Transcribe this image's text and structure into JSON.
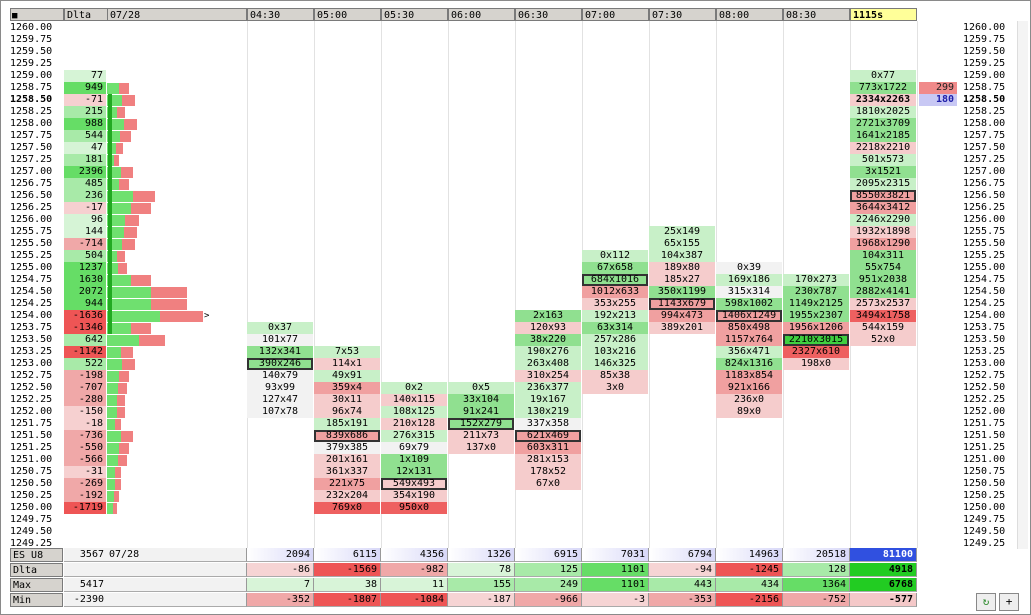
{
  "header": {
    "corner_icon": "grid-menu-icon",
    "delta_label": "Dlta",
    "date_label": "07/28",
    "time_columns": [
      "04:30",
      "05:00",
      "05:30",
      "06:00",
      "06:30",
      "07:00",
      "07:30",
      "08:00",
      "08:30",
      "1115s"
    ]
  },
  "prices": [
    "1260.00",
    "1259.75",
    "1259.50",
    "1259.25",
    "1259.00",
    "1258.75",
    "1258.50",
    "1258.25",
    "1258.00",
    "1257.75",
    "1257.50",
    "1257.25",
    "1257.00",
    "1256.75",
    "1256.50",
    "1256.25",
    "1256.00",
    "1255.75",
    "1255.50",
    "1255.25",
    "1255.00",
    "1254.75",
    "1254.50",
    "1254.25",
    "1254.00",
    "1253.75",
    "1253.50",
    "1253.25",
    "1253.00",
    "1252.75",
    "1252.50",
    "1252.25",
    "1252.00",
    "1251.75",
    "1251.50",
    "1251.25",
    "1251.00",
    "1250.75",
    "1250.50",
    "1250.25",
    "1250.00",
    "1249.75",
    "1249.50",
    "1249.25"
  ],
  "current_price": "1258.50",
  "delta_by_price": [
    {
      "p": "1259.00",
      "v": "77"
    },
    {
      "p": "1258.75",
      "v": "949"
    },
    {
      "p": "1258.50",
      "v": "-71"
    },
    {
      "p": "1258.25",
      "v": "215"
    },
    {
      "p": "1258.00",
      "v": "988"
    },
    {
      "p": "1257.75",
      "v": "544"
    },
    {
      "p": "1257.50",
      "v": "47"
    },
    {
      "p": "1257.25",
      "v": "181"
    },
    {
      "p": "1257.00",
      "v": "2396"
    },
    {
      "p": "1256.75",
      "v": "485"
    },
    {
      "p": "1256.50",
      "v": "236"
    },
    {
      "p": "1256.25",
      "v": "-17"
    },
    {
      "p": "1256.00",
      "v": "96"
    },
    {
      "p": "1255.75",
      "v": "144"
    },
    {
      "p": "1255.50",
      "v": "-714"
    },
    {
      "p": "1255.25",
      "v": "504"
    },
    {
      "p": "1255.00",
      "v": "1237"
    },
    {
      "p": "1254.75",
      "v": "1630"
    },
    {
      "p": "1254.50",
      "v": "2072"
    },
    {
      "p": "1254.25",
      "v": "944"
    },
    {
      "p": "1254.00",
      "v": "-1636"
    },
    {
      "p": "1253.75",
      "v": "-1346"
    },
    {
      "p": "1253.50",
      "v": "642"
    },
    {
      "p": "1253.25",
      "v": "-1142"
    },
    {
      "p": "1253.00",
      "v": "522"
    },
    {
      "p": "1252.75",
      "v": "-198"
    },
    {
      "p": "1252.50",
      "v": "-707"
    },
    {
      "p": "1252.25",
      "v": "-280"
    },
    {
      "p": "1252.00",
      "v": "-150"
    },
    {
      "p": "1251.75",
      "v": "-18"
    },
    {
      "p": "1251.50",
      "v": "-736"
    },
    {
      "p": "1251.25",
      "v": "-550"
    },
    {
      "p": "1251.00",
      "v": "-566"
    },
    {
      "p": "1250.75",
      "v": "-31"
    },
    {
      "p": "1250.50",
      "v": "-269"
    },
    {
      "p": "1250.25",
      "v": "-192"
    },
    {
      "p": "1250.00",
      "v": "-1719"
    }
  ],
  "volume_profile": [
    {
      "p": "1258.75",
      "v": 22
    },
    {
      "p": "1258.50",
      "v": 28
    },
    {
      "p": "1258.25",
      "v": 18
    },
    {
      "p": "1258.00",
      "v": 30
    },
    {
      "p": "1257.75",
      "v": 24
    },
    {
      "p": "1257.50",
      "v": 16
    },
    {
      "p": "1257.25",
      "v": 12
    },
    {
      "p": "1257.00",
      "v": 26
    },
    {
      "p": "1256.75",
      "v": 22
    },
    {
      "p": "1256.50",
      "v": 48
    },
    {
      "p": "1256.25",
      "v": 44
    },
    {
      "p": "1256.00",
      "v": 32
    },
    {
      "p": "1255.75",
      "v": 30
    },
    {
      "p": "1255.50",
      "v": 28
    },
    {
      "p": "1255.25",
      "v": 18
    },
    {
      "p": "1255.00",
      "v": 20
    },
    {
      "p": "1254.75",
      "v": 44
    },
    {
      "p": "1254.50",
      "v": 80
    },
    {
      "p": "1254.25",
      "v": 80
    },
    {
      "p": "1254.00",
      "v": 96
    },
    {
      "p": "1253.75",
      "v": 44
    },
    {
      "p": "1253.50",
      "v": 58
    },
    {
      "p": "1253.25",
      "v": 26
    },
    {
      "p": "1253.00",
      "v": 28
    },
    {
      "p": "1252.75",
      "v": 22
    },
    {
      "p": "1252.50",
      "v": 20
    },
    {
      "p": "1252.25",
      "v": 18
    },
    {
      "p": "1252.00",
      "v": 18
    },
    {
      "p": "1251.75",
      "v": 14
    },
    {
      "p": "1251.50",
      "v": 26
    },
    {
      "p": "1251.25",
      "v": 22
    },
    {
      "p": "1251.00",
      "v": 20
    },
    {
      "p": "1250.75",
      "v": 14
    },
    {
      "p": "1250.50",
      "v": 14
    },
    {
      "p": "1250.25",
      "v": 12
    },
    {
      "p": "1250.00",
      "v": 10
    }
  ],
  "value_area": {
    "top": "1258.50",
    "bottom": "1253.75"
  },
  "poc_marker": {
    "p": "1254.00",
    "label": ">"
  },
  "cells": [
    {
      "c": 0,
      "p": "1253.75",
      "t": "0x37",
      "s": "lg"
    },
    {
      "c": 0,
      "p": "1253.50",
      "t": "101x77",
      "s": "w"
    },
    {
      "c": 0,
      "p": "1253.25",
      "t": "132x341",
      "s": "g"
    },
    {
      "c": 0,
      "p": "1253.00",
      "t": "390x246",
      "s": "g",
      "box": true
    },
    {
      "c": 0,
      "p": "1252.75",
      "t": "140x79",
      "s": "w"
    },
    {
      "c": 0,
      "p": "1252.50",
      "t": "93x99",
      "s": "w"
    },
    {
      "c": 0,
      "p": "1252.25",
      "t": "127x47",
      "s": "w"
    },
    {
      "c": 0,
      "p": "1252.00",
      "t": "107x78",
      "s": "w"
    },
    {
      "c": 1,
      "p": "1253.25",
      "t": "7x53",
      "s": "lg"
    },
    {
      "c": 1,
      "p": "1253.00",
      "t": "114x1",
      "s": "lr"
    },
    {
      "c": 1,
      "p": "1252.75",
      "t": "49x91",
      "s": "lg"
    },
    {
      "c": 1,
      "p": "1252.50",
      "t": "359x4",
      "s": "r"
    },
    {
      "c": 1,
      "p": "1252.25",
      "t": "30x11",
      "s": "lr"
    },
    {
      "c": 1,
      "p": "1252.00",
      "t": "96x74",
      "s": "lr"
    },
    {
      "c": 1,
      "p": "1251.75",
      "t": "185x191",
      "s": "lg"
    },
    {
      "c": 1,
      "p": "1251.50",
      "t": "839x686",
      "s": "r",
      "box": true
    },
    {
      "c": 1,
      "p": "1251.25",
      "t": "379x385",
      "s": "w"
    },
    {
      "c": 1,
      "p": "1251.00",
      "t": "201x161",
      "s": "lr"
    },
    {
      "c": 1,
      "p": "1250.75",
      "t": "361x337",
      "s": "lr"
    },
    {
      "c": 1,
      "p": "1250.50",
      "t": "221x75",
      "s": "r"
    },
    {
      "c": 1,
      "p": "1250.25",
      "t": "232x204",
      "s": "lr"
    },
    {
      "c": 1,
      "p": "1250.00",
      "t": "769x0",
      "s": "rr"
    },
    {
      "c": 2,
      "p": "1252.50",
      "t": "0x2",
      "s": "lg"
    },
    {
      "c": 2,
      "p": "1252.25",
      "t": "140x115",
      "s": "lr"
    },
    {
      "c": 2,
      "p": "1252.00",
      "t": "108x125",
      "s": "lg"
    },
    {
      "c": 2,
      "p": "1251.75",
      "t": "210x128",
      "s": "lr"
    },
    {
      "c": 2,
      "p": "1251.50",
      "t": "276x315",
      "s": "lg"
    },
    {
      "c": 2,
      "p": "1251.25",
      "t": "69x79",
      "s": "w"
    },
    {
      "c": 2,
      "p": "1251.00",
      "t": "1x109",
      "s": "g"
    },
    {
      "c": 2,
      "p": "1250.75",
      "t": "12x131",
      "s": "g"
    },
    {
      "c": 2,
      "p": "1250.50",
      "t": "549x493",
      "s": "lr",
      "box": true
    },
    {
      "c": 2,
      "p": "1250.25",
      "t": "354x190",
      "s": "lr"
    },
    {
      "c": 2,
      "p": "1250.00",
      "t": "950x0",
      "s": "rr"
    },
    {
      "c": 3,
      "p": "1252.50",
      "t": "0x5",
      "s": "lg"
    },
    {
      "c": 3,
      "p": "1252.25",
      "t": "33x104",
      "s": "g"
    },
    {
      "c": 3,
      "p": "1252.00",
      "t": "91x241",
      "s": "g"
    },
    {
      "c": 3,
      "p": "1251.75",
      "t": "152x279",
      "s": "g",
      "box": true
    },
    {
      "c": 3,
      "p": "1251.50",
      "t": "211x73",
      "s": "lr"
    },
    {
      "c": 3,
      "p": "1251.25",
      "t": "137x0",
      "s": "lr"
    },
    {
      "c": 4,
      "p": "1254.00",
      "t": "2x163",
      "s": "g"
    },
    {
      "c": 4,
      "p": "1253.75",
      "t": "120x93",
      "s": "lr"
    },
    {
      "c": 4,
      "p": "1253.50",
      "t": "38x220",
      "s": "g"
    },
    {
      "c": 4,
      "p": "1253.25",
      "t": "190x276",
      "s": "lg"
    },
    {
      "c": 4,
      "p": "1253.00",
      "t": "263x408",
      "s": "lg"
    },
    {
      "c": 4,
      "p": "1252.75",
      "t": "310x254",
      "s": "lr"
    },
    {
      "c": 4,
      "p": "1252.50",
      "t": "236x377",
      "s": "lg"
    },
    {
      "c": 4,
      "p": "1252.25",
      "t": "19x167",
      "s": "lg"
    },
    {
      "c": 4,
      "p": "1252.00",
      "t": "130x219",
      "s": "lg"
    },
    {
      "c": 4,
      "p": "1251.75",
      "t": "337x358",
      "s": "w"
    },
    {
      "c": 4,
      "p": "1251.50",
      "t": "621x469",
      "s": "r",
      "box": true
    },
    {
      "c": 4,
      "p": "1251.25",
      "t": "603x311",
      "s": "r"
    },
    {
      "c": 4,
      "p": "1251.00",
      "t": "281x153",
      "s": "lr"
    },
    {
      "c": 4,
      "p": "1250.75",
      "t": "178x52",
      "s": "lr"
    },
    {
      "c": 4,
      "p": "1250.50",
      "t": "67x0",
      "s": "lr"
    },
    {
      "c": 5,
      "p": "1255.25",
      "t": "0x112",
      "s": "lg"
    },
    {
      "c": 5,
      "p": "1255.00",
      "t": "67x658",
      "s": "g"
    },
    {
      "c": 5,
      "p": "1254.75",
      "t": "684x1016",
      "s": "g",
      "box": true
    },
    {
      "c": 5,
      "p": "1254.50",
      "t": "1012x633",
      "s": "r"
    },
    {
      "c": 5,
      "p": "1254.25",
      "t": "353x255",
      "s": "lr"
    },
    {
      "c": 5,
      "p": "1254.00",
      "t": "192x213",
      "s": "lg"
    },
    {
      "c": 5,
      "p": "1253.75",
      "t": "63x314",
      "s": "g"
    },
    {
      "c": 5,
      "p": "1253.50",
      "t": "257x286",
      "s": "lg"
    },
    {
      "c": 5,
      "p": "1253.25",
      "t": "103x216",
      "s": "lg"
    },
    {
      "c": 5,
      "p": "1253.00",
      "t": "146x325",
      "s": "lg"
    },
    {
      "c": 5,
      "p": "1252.75",
      "t": "85x38",
      "s": "lr"
    },
    {
      "c": 5,
      "p": "1252.50",
      "t": "3x0",
      "s": "lr"
    },
    {
      "c": 6,
      "p": "1255.75",
      "t": "25x149",
      "s": "lg"
    },
    {
      "c": 6,
      "p": "1255.50",
      "t": "65x155",
      "s": "lg"
    },
    {
      "c": 6,
      "p": "1255.25",
      "t": "104x387",
      "s": "lg"
    },
    {
      "c": 6,
      "p": "1255.00",
      "t": "189x80",
      "s": "lr"
    },
    {
      "c": 6,
      "p": "1254.75",
      "t": "185x27",
      "s": "lr"
    },
    {
      "c": 6,
      "p": "1254.50",
      "t": "350x1199",
      "s": "g"
    },
    {
      "c": 6,
      "p": "1254.25",
      "t": "1143x679",
      "s": "r",
      "box": true
    },
    {
      "c": 6,
      "p": "1254.00",
      "t": "994x473",
      "s": "r"
    },
    {
      "c": 6,
      "p": "1253.75",
      "t": "389x201",
      "s": "lr"
    },
    {
      "c": 7,
      "p": "1255.00",
      "t": "0x39",
      "s": "w"
    },
    {
      "c": 7,
      "p": "1254.75",
      "t": "169x186",
      "s": "lg"
    },
    {
      "c": 7,
      "p": "1254.50",
      "t": "315x314",
      "s": "w"
    },
    {
      "c": 7,
      "p": "1254.25",
      "t": "598x1002",
      "s": "g"
    },
    {
      "c": 7,
      "p": "1254.00",
      "t": "1406x1249",
      "s": "r",
      "box": true
    },
    {
      "c": 7,
      "p": "1253.75",
      "t": "850x498",
      "s": "r"
    },
    {
      "c": 7,
      "p": "1253.50",
      "t": "1157x764",
      "s": "r"
    },
    {
      "c": 7,
      "p": "1253.25",
      "t": "356x471",
      "s": "lg"
    },
    {
      "c": 7,
      "p": "1253.00",
      "t": "824x1316",
      "s": "g"
    },
    {
      "c": 7,
      "p": "1252.75",
      "t": "1183x854",
      "s": "r"
    },
    {
      "c": 7,
      "p": "1252.50",
      "t": "921x166",
      "s": "r"
    },
    {
      "c": 7,
      "p": "1252.25",
      "t": "236x0",
      "s": "lr"
    },
    {
      "c": 7,
      "p": "1252.00",
      "t": "89x0",
      "s": "lr"
    },
    {
      "c": 8,
      "p": "1254.75",
      "t": "170x273",
      "s": "lg"
    },
    {
      "c": 8,
      "p": "1254.50",
      "t": "230x787",
      "s": "g"
    },
    {
      "c": 8,
      "p": "1254.25",
      "t": "1149x2125",
      "s": "g"
    },
    {
      "c": 8,
      "p": "1254.00",
      "t": "1955x2307",
      "s": "g"
    },
    {
      "c": 8,
      "p": "1253.75",
      "t": "1956x1206",
      "s": "r"
    },
    {
      "c": 8,
      "p": "1253.50",
      "t": "2210x3015",
      "s": "gg",
      "box": true
    },
    {
      "c": 8,
      "p": "1253.25",
      "t": "2327x610",
      "s": "rr"
    },
    {
      "c": 8,
      "p": "1253.00",
      "t": "198x0",
      "s": "lr"
    },
    {
      "c": 9,
      "p": "1259.00",
      "t": "0x77",
      "s": "lg"
    },
    {
      "c": 9,
      "p": "1258.75",
      "t": "773x1722",
      "s": "g"
    },
    {
      "c": 9,
      "p": "1258.50",
      "t": "2334x2263",
      "s": "lr",
      "bold": true
    },
    {
      "c": 9,
      "p": "1258.25",
      "t": "1810x2025",
      "s": "lg"
    },
    {
      "c": 9,
      "p": "1258.00",
      "t": "2721x3709",
      "s": "g"
    },
    {
      "c": 9,
      "p": "1257.75",
      "t": "1641x2185",
      "s": "g"
    },
    {
      "c": 9,
      "p": "1257.50",
      "t": "2218x2210",
      "s": "lr"
    },
    {
      "c": 9,
      "p": "1257.25",
      "t": "501x573",
      "s": "lg"
    },
    {
      "c": 9,
      "p": "1257.00",
      "t": "3x1521",
      "s": "g"
    },
    {
      "c": 9,
      "p": "1256.75",
      "t": "2095x2315",
      "s": "lg"
    },
    {
      "c": 9,
      "p": "1256.50",
      "t": "8550x3821",
      "s": "r",
      "box": true
    },
    {
      "c": 9,
      "p": "1256.25",
      "t": "3644x3412",
      "s": "r"
    },
    {
      "c": 9,
      "p": "1256.00",
      "t": "2246x2290",
      "s": "lg"
    },
    {
      "c": 9,
      "p": "1255.75",
      "t": "1932x1898",
      "s": "lr"
    },
    {
      "c": 9,
      "p": "1255.50",
      "t": "1968x1290",
      "s": "r"
    },
    {
      "c": 9,
      "p": "1255.25",
      "t": "104x311",
      "s": "g"
    },
    {
      "c": 9,
      "p": "1255.00",
      "t": "55x754",
      "s": "g"
    },
    {
      "c": 9,
      "p": "1254.75",
      "t": "951x2038",
      "s": "g"
    },
    {
      "c": 9,
      "p": "1254.50",
      "t": "2882x4141",
      "s": "g"
    },
    {
      "c": 9,
      "p": "1254.25",
      "t": "2573x2537",
      "s": "lr"
    },
    {
      "c": 9,
      "p": "1254.00",
      "t": "3494x1758",
      "s": "rr"
    },
    {
      "c": 9,
      "p": "1253.75",
      "t": "544x159",
      "s": "lr"
    },
    {
      "c": 9,
      "p": "1253.50",
      "t": "52x0",
      "s": "lr"
    }
  ],
  "live_orders": [
    {
      "p": "1258.75",
      "v": "299",
      "s": "r"
    },
    {
      "p": "1258.50",
      "v": "180",
      "s": "b"
    }
  ],
  "summary": [
    {
      "label": "ES U8",
      "first": "3567",
      "second": "07/28",
      "vals": [
        "2094",
        "6115",
        "4356",
        "1326",
        "6915",
        "7031",
        "6794",
        "14963",
        "20518",
        "81100"
      ],
      "kind": "vol"
    },
    {
      "label": "Dlta",
      "first": "",
      "second": "",
      "vals": [
        "-86",
        "-1569",
        "-982",
        "78",
        "125",
        "1101",
        "-94",
        "-1245",
        "128",
        "4918"
      ],
      "kind": "delta"
    },
    {
      "label": "Max",
      "first": "5417",
      "second": "",
      "vals": [
        "7",
        "38",
        "11",
        "155",
        "249",
        "1101",
        "443",
        "434",
        "1364",
        "6768"
      ],
      "kind": "delta"
    },
    {
      "label": "Min",
      "first": "-2390",
      "second": "",
      "vals": [
        "-352",
        "-1807",
        "-1084",
        "-187",
        "-966",
        "-3",
        "-353",
        "-2156",
        "-752",
        "-577"
      ],
      "kind": "delta"
    }
  ],
  "buttons": {
    "refresh_icon": "refresh-icon",
    "add_label": "+"
  },
  "colors": {
    "g": "#90e090",
    "lg": "#c8f0c8",
    "gg": "#40d040",
    "r": "#f0a0a0",
    "lr": "#f5cccc",
    "rr": "#ee6060",
    "w": "#f2f2f2",
    "header": "#d6d3ce",
    "current": "#ffff99",
    "vol_summary": "#d8d8f8",
    "vol_total": "#3050e0"
  }
}
